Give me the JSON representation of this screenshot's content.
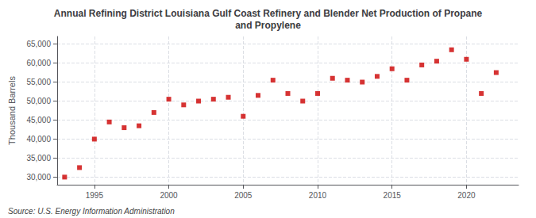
{
  "chart_data": {
    "type": "scatter",
    "title": "Annual Refining District Louisiana Gulf Coast Refinery and Blender Net Production of Propane\nand Propylene",
    "ylabel": "Thousand Barrels",
    "annotations": [
      "Source: U.S. Energy Information Administration"
    ],
    "x": [
      1993,
      1994,
      1995,
      1996,
      1997,
      1998,
      1999,
      2000,
      2001,
      2002,
      2003,
      2004,
      2005,
      2006,
      2007,
      2008,
      2009,
      2010,
      2011,
      2012,
      2013,
      2014,
      2015,
      2016,
      2017,
      2018,
      2019,
      2020,
      2021,
      2022
    ],
    "values": [
      30000,
      32500,
      40000,
      44500,
      43000,
      43500,
      47000,
      50500,
      49000,
      50000,
      50500,
      51000,
      46000,
      51500,
      55500,
      52000,
      50000,
      52000,
      56000,
      55500,
      55000,
      56500,
      58500,
      55500,
      59500,
      60500,
      63500,
      61000,
      52000,
      57500
    ],
    "color": "#cc0000",
    "marker": "square",
    "xlim": [
      1992.5,
      2023.5
    ],
    "xticks": [
      1995,
      2000,
      2005,
      2010,
      2015,
      2020
    ],
    "ylim": [
      28000,
      67000
    ],
    "yticks": [
      {
        "value": 30000,
        "label": "30,000"
      },
      {
        "value": 35000,
        "label": "35,000"
      },
      {
        "value": 40000,
        "label": "40,000"
      },
      {
        "value": 45000,
        "label": "45,000"
      },
      {
        "value": 50000,
        "label": "50,000"
      },
      {
        "value": 55000,
        "label": "55,000"
      },
      {
        "value": 60000,
        "label": "60,000"
      },
      {
        "value": 65000,
        "label": "65,000"
      }
    ],
    "grid": true
  }
}
